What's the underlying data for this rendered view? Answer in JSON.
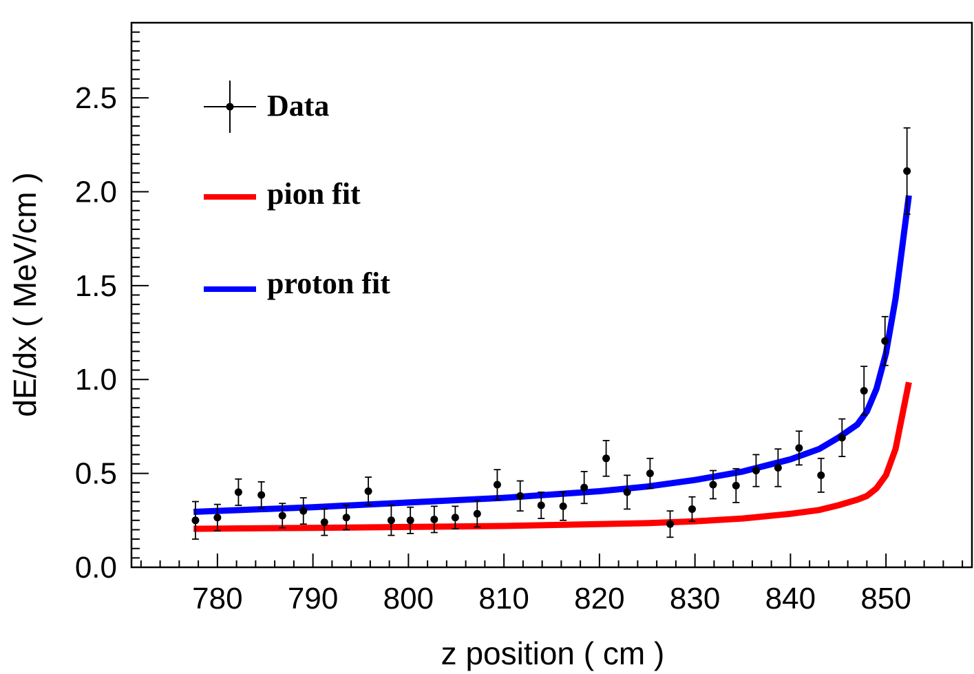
{
  "chart_data": {
    "type": "scatter",
    "xlabel": "z position ( cm )",
    "ylabel": "dE/dx ( MeV/cm )",
    "xlim": [
      771,
      859
    ],
    "ylim": [
      0,
      2.9
    ],
    "x_ticks": [
      "780",
      "790",
      "800",
      "810",
      "820",
      "830",
      "840",
      "850"
    ],
    "y_ticks": [
      "0.0",
      "0.5",
      "1.0",
      "1.5",
      "2.0",
      "2.5"
    ],
    "grid": false,
    "legend_position": "top-left",
    "series": [
      {
        "name": "Data",
        "kind": "points-with-errors",
        "color": "#000000",
        "points": [
          {
            "x": 777.7,
            "y": 0.25,
            "err": 0.1
          },
          {
            "x": 780.0,
            "y": 0.265,
            "err": 0.07
          },
          {
            "x": 782.2,
            "y": 0.4,
            "err": 0.07
          },
          {
            "x": 784.6,
            "y": 0.385,
            "err": 0.07
          },
          {
            "x": 786.8,
            "y": 0.275,
            "err": 0.065
          },
          {
            "x": 789.0,
            "y": 0.3,
            "err": 0.07
          },
          {
            "x": 791.2,
            "y": 0.24,
            "err": 0.07
          },
          {
            "x": 793.5,
            "y": 0.265,
            "err": 0.065
          },
          {
            "x": 795.8,
            "y": 0.405,
            "err": 0.075
          },
          {
            "x": 798.2,
            "y": 0.25,
            "err": 0.08
          },
          {
            "x": 800.2,
            "y": 0.25,
            "err": 0.07
          },
          {
            "x": 802.7,
            "y": 0.255,
            "err": 0.07
          },
          {
            "x": 804.9,
            "y": 0.265,
            "err": 0.06
          },
          {
            "x": 807.2,
            "y": 0.285,
            "err": 0.07
          },
          {
            "x": 809.3,
            "y": 0.44,
            "err": 0.08
          },
          {
            "x": 811.7,
            "y": 0.38,
            "err": 0.08
          },
          {
            "x": 813.9,
            "y": 0.33,
            "err": 0.07
          },
          {
            "x": 816.2,
            "y": 0.325,
            "err": 0.075
          },
          {
            "x": 818.4,
            "y": 0.425,
            "err": 0.085
          },
          {
            "x": 820.7,
            "y": 0.58,
            "err": 0.095
          },
          {
            "x": 822.9,
            "y": 0.4,
            "err": 0.09
          },
          {
            "x": 825.3,
            "y": 0.5,
            "err": 0.08
          },
          {
            "x": 827.4,
            "y": 0.23,
            "err": 0.07
          },
          {
            "x": 829.7,
            "y": 0.31,
            "err": 0.065
          },
          {
            "x": 831.9,
            "y": 0.44,
            "err": 0.075
          },
          {
            "x": 834.3,
            "y": 0.435,
            "err": 0.09
          },
          {
            "x": 836.4,
            "y": 0.515,
            "err": 0.085
          },
          {
            "x": 838.7,
            "y": 0.53,
            "err": 0.1
          },
          {
            "x": 840.9,
            "y": 0.635,
            "err": 0.09
          },
          {
            "x": 843.2,
            "y": 0.49,
            "err": 0.09
          },
          {
            "x": 845.4,
            "y": 0.69,
            "err": 0.1
          },
          {
            "x": 847.7,
            "y": 0.94,
            "err": 0.13
          },
          {
            "x": 849.9,
            "y": 1.205,
            "err": 0.13
          },
          {
            "x": 852.2,
            "y": 2.11,
            "err": 0.23
          }
        ]
      },
      {
        "name": "pion fit",
        "kind": "line",
        "color": "#ff0000",
        "x": [
          777.5,
          790,
          800,
          810,
          820,
          825,
          830,
          835,
          840,
          843,
          845,
          847,
          848,
          849,
          850,
          851,
          852.4
        ],
        "y": [
          0.205,
          0.21,
          0.215,
          0.22,
          0.23,
          0.235,
          0.245,
          0.26,
          0.285,
          0.305,
          0.33,
          0.36,
          0.38,
          0.42,
          0.49,
          0.63,
          0.985
        ]
      },
      {
        "name": "proton fit",
        "kind": "line",
        "color": "#0000ff",
        "x": [
          777.5,
          790,
          800,
          810,
          820,
          825,
          830,
          835,
          840,
          843,
          845,
          847,
          848,
          849,
          850,
          851,
          852.4
        ],
        "y": [
          0.295,
          0.32,
          0.345,
          0.37,
          0.405,
          0.43,
          0.465,
          0.51,
          0.575,
          0.63,
          0.69,
          0.76,
          0.83,
          0.95,
          1.14,
          1.43,
          1.98
        ]
      }
    ]
  }
}
